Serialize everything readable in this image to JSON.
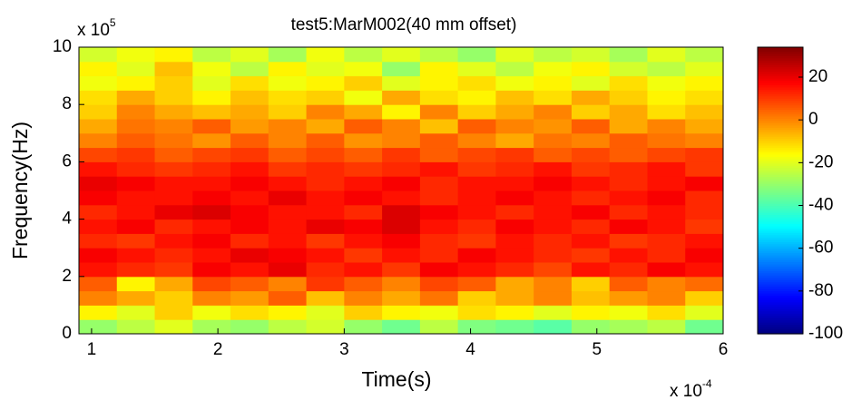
{
  "chart_data": {
    "type": "heatmap",
    "title": "test5:MarM002(40 mm offset)",
    "x_label": "Time(s)",
    "y_label": "Frequency(Hz)",
    "x_multiplier": {
      "base": "x 10",
      "exponent": "-4"
    },
    "y_multiplier": {
      "base": "x 10",
      "exponent": "5"
    },
    "x": [
      1.05,
      1.35,
      1.65,
      1.95,
      2.25,
      2.55,
      2.85,
      3.15,
      3.45,
      3.75,
      4.05,
      4.35,
      4.65,
      4.95,
      5.25,
      5.55,
      5.85
    ],
    "y": [
      0.25,
      0.75,
      1.25,
      1.75,
      2.25,
      2.75,
      3.25,
      3.75,
      4.25,
      4.75,
      5.25,
      5.75,
      6.25,
      6.75,
      7.25,
      7.75,
      8.25,
      8.75,
      9.25,
      9.75
    ],
    "z": [
      [
        -30,
        -25,
        -20,
        -28,
        -30,
        -25,
        -22,
        -30,
        -35,
        -25,
        -33,
        -35,
        -38,
        -30,
        -28,
        -25,
        -35
      ],
      [
        -15,
        -20,
        -10,
        -18,
        -12,
        -15,
        -20,
        -10,
        -15,
        -18,
        -12,
        -15,
        -20,
        -15,
        -18,
        -12,
        -20
      ],
      [
        0,
        -5,
        -10,
        0,
        -3,
        5,
        -8,
        0,
        -5,
        2,
        -10,
        -5,
        0,
        -8,
        -3,
        0,
        -10
      ],
      [
        5,
        -15,
        -5,
        8,
        5,
        0,
        10,
        5,
        0,
        8,
        5,
        -5,
        0,
        -10,
        5,
        0,
        3
      ],
      [
        15,
        12,
        10,
        18,
        15,
        20,
        12,
        15,
        10,
        18,
        15,
        12,
        8,
        15,
        12,
        18,
        15
      ],
      [
        18,
        15,
        12,
        15,
        20,
        18,
        15,
        10,
        15,
        12,
        18,
        15,
        12,
        10,
        15,
        12,
        18
      ],
      [
        12,
        10,
        15,
        18,
        12,
        15,
        10,
        15,
        18,
        12,
        10,
        15,
        12,
        15,
        10,
        12,
        15
      ],
      [
        15,
        18,
        12,
        15,
        18,
        15,
        20,
        18,
        22,
        15,
        12,
        18,
        15,
        12,
        18,
        15,
        10
      ],
      [
        12,
        15,
        20,
        22,
        18,
        15,
        15,
        12,
        22,
        18,
        15,
        12,
        15,
        18,
        12,
        15,
        12
      ],
      [
        18,
        15,
        15,
        18,
        15,
        20,
        15,
        18,
        15,
        12,
        15,
        18,
        15,
        12,
        15,
        18,
        12
      ],
      [
        20,
        18,
        15,
        15,
        18,
        15,
        12,
        15,
        18,
        12,
        15,
        15,
        18,
        15,
        12,
        15,
        18
      ],
      [
        15,
        12,
        10,
        12,
        15,
        10,
        12,
        10,
        12,
        15,
        10,
        12,
        15,
        10,
        12,
        15,
        10
      ],
      [
        8,
        10,
        5,
        8,
        10,
        5,
        8,
        5,
        10,
        5,
        8,
        10,
        5,
        8,
        5,
        8,
        10
      ],
      [
        0,
        5,
        2,
        -2,
        5,
        0,
        5,
        -2,
        0,
        5,
        0,
        -5,
        2,
        0,
        5,
        2,
        0
      ],
      [
        -5,
        2,
        0,
        5,
        -3,
        0,
        -5,
        5,
        0,
        -8,
        5,
        0,
        -2,
        5,
        -5,
        0,
        -5
      ],
      [
        -10,
        0,
        -5,
        -8,
        -5,
        -10,
        0,
        -5,
        -15,
        0,
        -10,
        -5,
        0,
        -10,
        -5,
        -12,
        -8
      ],
      [
        -12,
        -5,
        -10,
        -15,
        -8,
        -12,
        -10,
        -18,
        -5,
        -12,
        -15,
        -8,
        -12,
        -5,
        -10,
        -15,
        -12
      ],
      [
        -18,
        -15,
        -10,
        -20,
        -12,
        -18,
        -15,
        -10,
        -20,
        -15,
        -12,
        -18,
        -15,
        -20,
        -12,
        -18,
        -15
      ],
      [
        -15,
        -20,
        -8,
        -18,
        -25,
        -15,
        -20,
        -18,
        -30,
        -15,
        -20,
        -25,
        -18,
        -15,
        -22,
        -25,
        -20
      ],
      [
        -22,
        -18,
        -15,
        -25,
        -20,
        -28,
        -18,
        -25,
        -20,
        -25,
        -30,
        -20,
        -25,
        -22,
        -28,
        -20,
        -25
      ]
    ],
    "xlim": [
      0.9,
      6
    ],
    "xticks": [
      1,
      2,
      3,
      4,
      5,
      6
    ],
    "ylim": [
      0,
      10
    ],
    "yticks": [
      0,
      2,
      4,
      6,
      8,
      10
    ],
    "colormap": "jet",
    "zlim": [
      -100,
      34
    ],
    "zticks": [
      20,
      0,
      -20,
      -40,
      -60,
      -80,
      -100
    ]
  }
}
